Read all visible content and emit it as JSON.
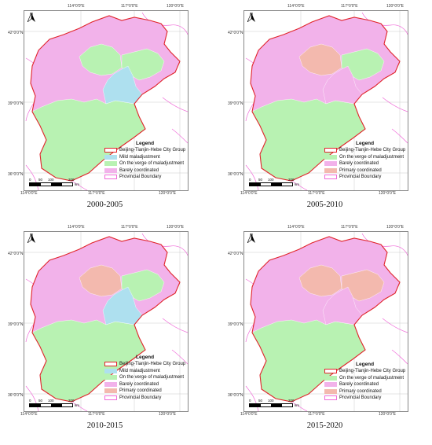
{
  "colors": {
    "boundary": "#e0242a",
    "mild": "#aee0ef",
    "verge": "#b8f2b2",
    "barely": "#f2b2ea",
    "primary": "#f3b9ae",
    "provincial": "#f06ad8"
  },
  "legend_title": "Legend",
  "labels": {
    "group": "Beijing-Tianjin-Hebe City Group",
    "mild": "Mild maladjustment",
    "verge": "On the verge of maladjustment",
    "barely": "Barely coordinated",
    "primary": "Primary coordinated",
    "provincial": "Provincial Boundary"
  },
  "coords": {
    "lon114": "114°0'0\"E",
    "lon117": "117°0'0\"E",
    "lon120": "120°0'0\"E",
    "lat42": "42°0'0\"N",
    "lat39": "39°0'0\"N",
    "lat36": "36°0'0\"N"
  },
  "north": "N",
  "scale": {
    "t0": "0",
    "t50": "50",
    "t100": "100",
    "t200": "200",
    "unit": "km"
  },
  "panels": [
    {
      "period": "2000-2005",
      "legend": [
        "group",
        "mild",
        "verge",
        "barely",
        "provincial"
      ],
      "fills": {
        "north": "barely",
        "south": "verge",
        "central": "mild",
        "beijing": "verge",
        "northeast": "verge"
      }
    },
    {
      "period": "2005-2010",
      "legend": [
        "group",
        "verge",
        "barely",
        "primary",
        "provincial"
      ],
      "fills": {
        "north": "barely",
        "south": "verge",
        "central": "barely",
        "beijing": "primary",
        "northeast": "verge"
      }
    },
    {
      "period": "2010-2015",
      "legend": [
        "group",
        "mild",
        "verge",
        "barely",
        "primary",
        "provincial"
      ],
      "fills": {
        "north": "barely",
        "south": "verge",
        "central": "mild",
        "beijing": "primary",
        "northeast": "verge"
      }
    },
    {
      "period": "2015-2020",
      "legend": [
        "group",
        "verge",
        "barely",
        "primary",
        "provincial"
      ],
      "fills": {
        "north": "barely",
        "south": "verge",
        "central": "barely",
        "beijing": "primary",
        "northeast": "primary"
      }
    }
  ]
}
